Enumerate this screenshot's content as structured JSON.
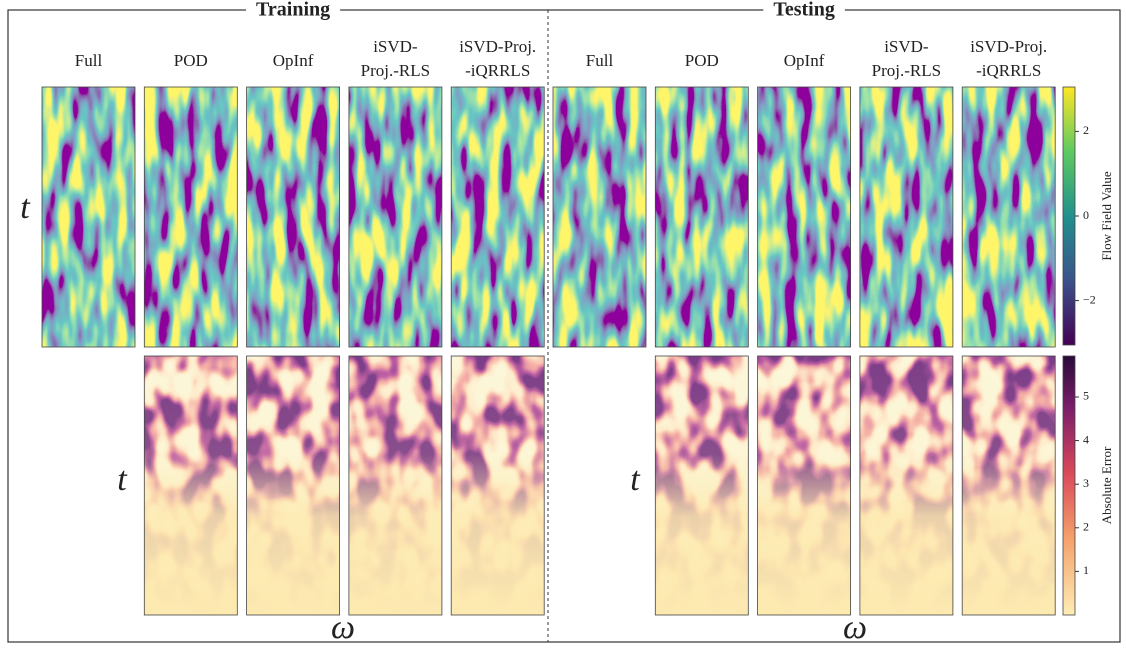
{
  "sections": [
    {
      "title": "Training",
      "columns": [
        [
          "Full"
        ],
        [
          "POD"
        ],
        [
          "OpInf"
        ],
        [
          "iSVD-",
          "Proj.-RLS"
        ],
        [
          "iSVD-Proj.",
          "-iQRRLS"
        ]
      ]
    },
    {
      "title": "Testing",
      "columns": [
        [
          "Full"
        ],
        [
          "POD"
        ],
        [
          "OpInf"
        ],
        [
          "iSVD-",
          "Proj.-RLS"
        ],
        [
          "iSVD-Proj.",
          "-iQRRLS"
        ]
      ]
    }
  ],
  "axis_labels": {
    "time": "t",
    "frequency": "ω"
  },
  "colorbars": [
    {
      "label": "Flow Field Value",
      "lim": [
        -3.05,
        3.05
      ],
      "ticks": [
        {
          "value": -2,
          "label": "−2"
        },
        0,
        2
      ]
    },
    {
      "label": "Absolute Error",
      "lim": [
        0,
        5.94
      ],
      "ticks": [
        1,
        2,
        3,
        4,
        5
      ]
    }
  ]
}
